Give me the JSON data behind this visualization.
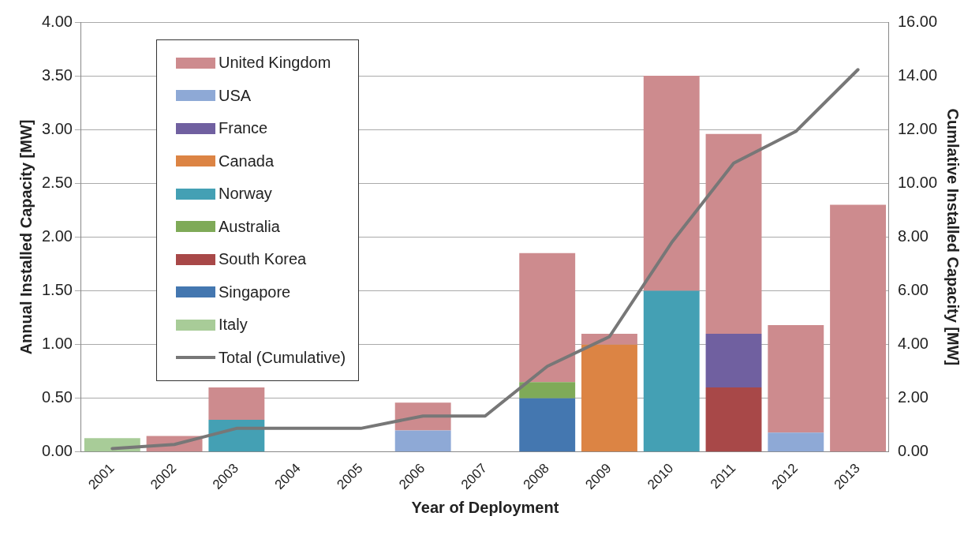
{
  "chart_data": {
    "type": "bar",
    "stacked": true,
    "xlabel": "Year of Deployment",
    "ylabel": "Annual Installed Capacity [MW]",
    "y2label": "Cumlative Installed Capacity [MW]",
    "categories": [
      "2001",
      "2002",
      "2003",
      "2004",
      "2005",
      "2006",
      "2007",
      "2008",
      "2009",
      "2010",
      "2011",
      "2012",
      "2013"
    ],
    "series": [
      {
        "name": "Italy",
        "color": "#a8cc98",
        "values": [
          0.13,
          null,
          null,
          null,
          null,
          null,
          null,
          null,
          null,
          null,
          null,
          null,
          null
        ]
      },
      {
        "name": "Singapore",
        "color": "#4477b0",
        "values": [
          null,
          null,
          null,
          null,
          null,
          null,
          null,
          0.5,
          null,
          null,
          null,
          null,
          null
        ]
      },
      {
        "name": "South Korea",
        "color": "#a84848",
        "values": [
          null,
          null,
          null,
          null,
          null,
          null,
          null,
          null,
          null,
          null,
          0.6,
          null,
          null
        ]
      },
      {
        "name": "Australia",
        "color": "#7faa58",
        "values": [
          null,
          null,
          null,
          null,
          null,
          null,
          null,
          0.15,
          null,
          null,
          null,
          null,
          null
        ]
      },
      {
        "name": "Norway",
        "color": "#44a0b4",
        "values": [
          null,
          null,
          0.3,
          null,
          null,
          null,
          null,
          null,
          null,
          1.5,
          null,
          null,
          null
        ]
      },
      {
        "name": "Canada",
        "color": "#dc8444",
        "values": [
          null,
          null,
          null,
          null,
          null,
          null,
          null,
          null,
          1.0,
          null,
          null,
          null,
          null
        ]
      },
      {
        "name": "France",
        "color": "#7060a0",
        "values": [
          null,
          null,
          null,
          null,
          null,
          null,
          null,
          null,
          null,
          null,
          0.5,
          null,
          null
        ]
      },
      {
        "name": "USA",
        "color": "#8ea9d6",
        "values": [
          null,
          null,
          null,
          null,
          null,
          0.2,
          null,
          null,
          null,
          null,
          null,
          0.18,
          null
        ]
      },
      {
        "name": "United Kingdom",
        "color": "#cd8b8e",
        "values": [
          null,
          0.15,
          0.3,
          null,
          null,
          0.26,
          null,
          1.2,
          0.1,
          2.0,
          1.86,
          1.0,
          2.3
        ]
      },
      {
        "name": "Total (Cumulative)",
        "type": "line",
        "axis": "y2",
        "color": "#777777",
        "values": [
          0.13,
          0.28,
          0.88,
          0.88,
          0.88,
          1.34,
          1.34,
          3.19,
          4.29,
          7.79,
          10.75,
          11.93,
          14.23
        ]
      }
    ],
    "ylim": [
      0,
      4
    ],
    "yticks": [
      {
        "value": 0,
        "label": "0.00"
      },
      {
        "value": 0.5,
        "label": "0.50"
      },
      {
        "value": 1,
        "label": "1.00"
      },
      {
        "value": 1.5,
        "label": "1.50"
      },
      {
        "value": 2,
        "label": "2.00"
      },
      {
        "value": 2.5,
        "label": "2.50"
      },
      {
        "value": 3,
        "label": "3.00"
      },
      {
        "value": 3.5,
        "label": "3.50"
      },
      {
        "value": 4,
        "label": "4.00"
      }
    ],
    "y2lim": [
      0,
      16
    ],
    "y2ticks": [
      {
        "value": 0,
        "label": "0.00"
      },
      {
        "value": 2,
        "label": "2.00"
      },
      {
        "value": 4,
        "label": "4.00"
      },
      {
        "value": 6,
        "label": "6.00"
      },
      {
        "value": 8,
        "label": "8.00"
      },
      {
        "value": 10,
        "label": "10.00"
      },
      {
        "value": 12,
        "label": "12.00"
      },
      {
        "value": 14,
        "label": "14.00"
      },
      {
        "value": 16,
        "label": "16.00"
      }
    ],
    "grid": "y",
    "legend": "top left",
    "marker": "none",
    "line_style": "solid"
  }
}
